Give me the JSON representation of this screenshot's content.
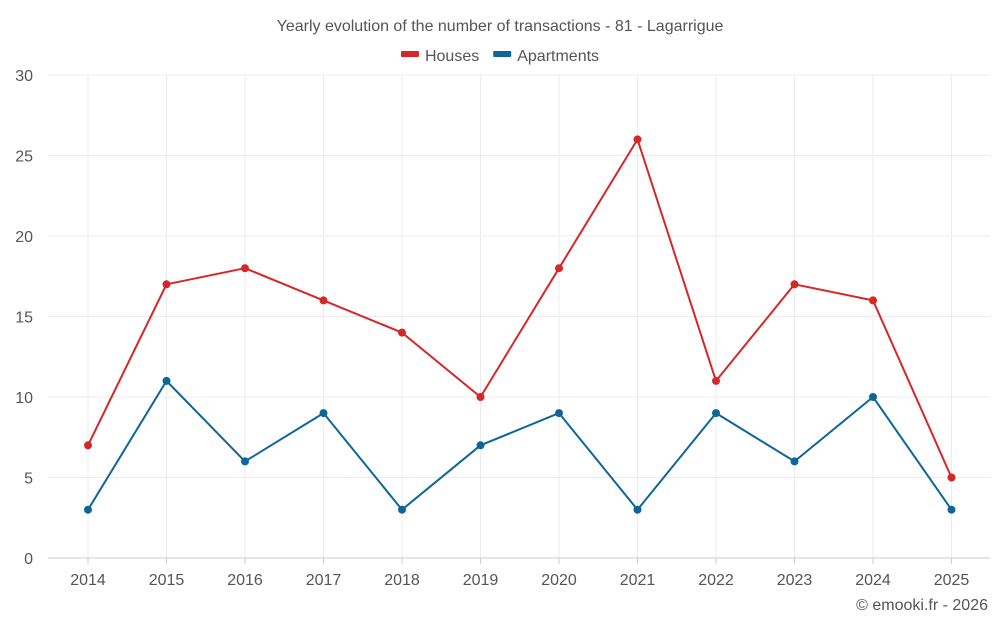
{
  "chart_data": {
    "type": "line",
    "title": "Yearly evolution of the number of transactions - 81 - Lagarrigue",
    "categories": [
      "2014",
      "2015",
      "2016",
      "2017",
      "2018",
      "2019",
      "2020",
      "2021",
      "2022",
      "2023",
      "2024",
      "2025"
    ],
    "series": [
      {
        "name": "Houses",
        "color": "#d62728",
        "values": [
          7,
          17,
          18,
          16,
          14,
          10,
          18,
          26,
          11,
          17,
          16,
          5
        ]
      },
      {
        "name": "Apartments",
        "color": "#0e6698",
        "values": [
          3,
          11,
          6,
          9,
          3,
          7,
          9,
          3,
          9,
          6,
          10,
          3
        ]
      }
    ],
    "xlabel": "",
    "ylabel": "",
    "ylim": [
      0,
      30
    ],
    "yticks": [
      0,
      5,
      10,
      15,
      20,
      25,
      30
    ],
    "grid": true,
    "legend_position": "top-center"
  },
  "copyright": "© emooki.fr - 2026"
}
